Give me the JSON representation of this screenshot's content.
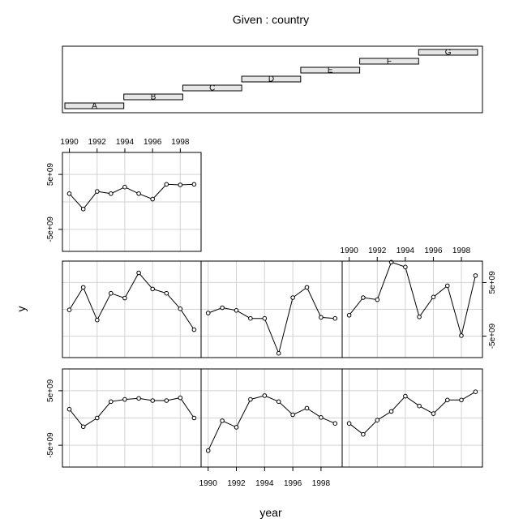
{
  "chart_data": {
    "type": "line",
    "title": "Given : country",
    "xlabel": "year",
    "ylabel": "y",
    "x_ticks": [
      "1990",
      "1992",
      "1994",
      "1996",
      "1998"
    ],
    "y_ticks": [
      "-5e+09",
      "5e+09"
    ],
    "xlim": [
      1989.5,
      1999.5
    ],
    "ylim": [
      -9000000000,
      9000000000
    ],
    "grid": true,
    "given": {
      "levels": [
        "A",
        "B",
        "C",
        "D",
        "E",
        "F",
        "G"
      ]
    },
    "x": [
      1990,
      1991,
      1992,
      1993,
      1994,
      1995,
      1996,
      1997,
      1998,
      1999
    ],
    "series": [
      {
        "name": "A",
        "values": [
          1500000000,
          -1300000000,
          1900000000,
          1500000000,
          2700000000,
          1500000000,
          500000000,
          3200000000,
          3100000000,
          3200000000
        ]
      },
      {
        "name": "B",
        "values": [
          -100000000,
          4100000000,
          -2000000000,
          3000000000,
          2100000000,
          6800000000,
          3800000000,
          3000000000,
          100000000,
          -3800000000
        ]
      },
      {
        "name": "C",
        "values": [
          -700000000,
          300000000,
          -200000000,
          -1700000000,
          -1700000000,
          -8200000000,
          2200000000,
          4100000000,
          -1500000000,
          -1700000000
        ]
      },
      {
        "name": "D",
        "values": [
          -1100000000,
          2200000000,
          1800000000,
          8800000000,
          7900000000,
          -1400000000,
          2300000000,
          4400000000,
          -4900000000,
          6300000000
        ]
      },
      {
        "name": "E",
        "values": [
          1600000000,
          -1600000000,
          0,
          3000000000,
          3400000000,
          3600000000,
          3200000000,
          3200000000,
          3700000000,
          0
        ]
      },
      {
        "name": "F",
        "values": [
          -6000000000,
          -500000000,
          -1700000000,
          3400000000,
          4100000000,
          3000000000,
          600000000,
          1800000000,
          100000000,
          -1000000000
        ]
      },
      {
        "name": "G",
        "values": [
          -1000000000,
          -3000000000,
          -400000000,
          1200000000,
          4000000000,
          2200000000,
          800000000,
          3300000000,
          3300000000,
          4800000000
        ]
      }
    ]
  }
}
